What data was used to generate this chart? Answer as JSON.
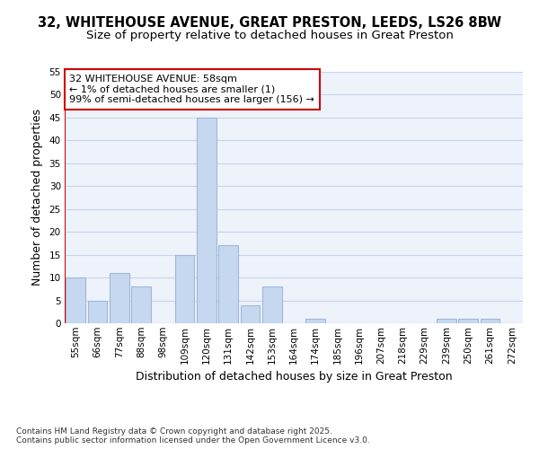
{
  "title1": "32, WHITEHOUSE AVENUE, GREAT PRESTON, LEEDS, LS26 8BW",
  "title2": "Size of property relative to detached houses in Great Preston",
  "xlabel": "Distribution of detached houses by size in Great Preston",
  "ylabel": "Number of detached properties",
  "categories": [
    "55sqm",
    "66sqm",
    "77sqm",
    "88sqm",
    "98sqm",
    "109sqm",
    "120sqm",
    "131sqm",
    "142sqm",
    "153sqm",
    "164sqm",
    "174sqm",
    "185sqm",
    "196sqm",
    "207sqm",
    "218sqm",
    "229sqm",
    "239sqm",
    "250sqm",
    "261sqm",
    "272sqm"
  ],
  "values": [
    10,
    5,
    11,
    8,
    0,
    15,
    45,
    17,
    4,
    8,
    0,
    1,
    0,
    0,
    0,
    0,
    0,
    1,
    1,
    1,
    0
  ],
  "bar_color": "#c5d8f0",
  "bar_edge_color": "#a0b8d8",
  "annotation_text": "32 WHITEHOUSE AVENUE: 58sqm\n← 1% of detached houses are smaller (1)\n99% of semi-detached houses are larger (156) →",
  "annotation_box_color": "#ffffff",
  "annotation_box_edge": "#cc0000",
  "property_line_color": "#cc0000",
  "ylim": [
    0,
    55
  ],
  "yticks": [
    0,
    5,
    10,
    15,
    20,
    25,
    30,
    35,
    40,
    45,
    50,
    55
  ],
  "footer_text": "Contains HM Land Registry data © Crown copyright and database right 2025.\nContains public sector information licensed under the Open Government Licence v3.0.",
  "bg_color": "#eef2fa",
  "grid_color": "#c8d4e8",
  "title1_fontsize": 10.5,
  "title2_fontsize": 9.5,
  "axis_label_fontsize": 9,
  "tick_fontsize": 7.5,
  "annotation_fontsize": 8,
  "footer_fontsize": 6.5
}
